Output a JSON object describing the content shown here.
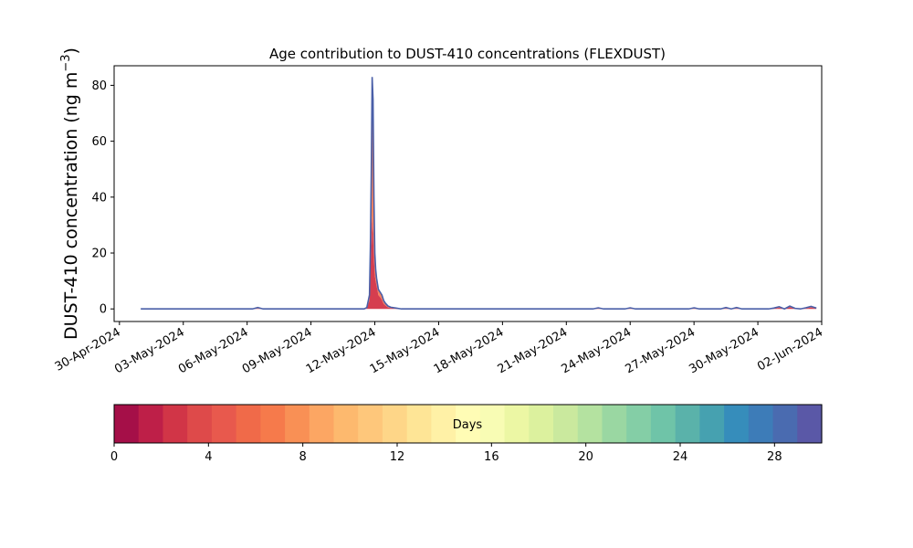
{
  "chart_data": {
    "type": "area",
    "title": "Age contribution to DUST-410 concentrations (FLEXDUST)",
    "xlabel": "",
    "ylabel_main": "DUST-410 concentration (ng m",
    "ylabel_exp": "−3",
    "ylabel_close": ")",
    "xlim": [
      "2024-04-29T18:00",
      "2024-06-02T00:00"
    ],
    "ylim": [
      -4.5,
      87
    ],
    "y_ticks": [
      0,
      20,
      40,
      60,
      80
    ],
    "x_ticks": [
      {
        "date": "2024-04-30",
        "label": "30-Apr-2024"
      },
      {
        "date": "2024-05-03",
        "label": "03-May-2024"
      },
      {
        "date": "2024-05-06",
        "label": "06-May-2024"
      },
      {
        "date": "2024-05-09",
        "label": "09-May-2024"
      },
      {
        "date": "2024-05-12",
        "label": "12-May-2024"
      },
      {
        "date": "2024-05-15",
        "label": "15-May-2024"
      },
      {
        "date": "2024-05-18",
        "label": "18-May-2024"
      },
      {
        "date": "2024-05-21",
        "label": "21-May-2024"
      },
      {
        "date": "2024-05-24",
        "label": "24-May-2024"
      },
      {
        "date": "2024-05-27",
        "label": "27-May-2024"
      },
      {
        "date": "2024-05-30",
        "label": "30-May-2024"
      },
      {
        "date": "2024-06-02",
        "label": "02-Jun-2024"
      }
    ],
    "grid": false,
    "series_note_color": "#4a5fa8",
    "total_series": {
      "x": [
        "2024-05-01T00:00",
        "2024-05-06T06:00",
        "2024-05-06T12:00",
        "2024-05-06T18:00",
        "2024-05-11T12:00",
        "2024-05-11T15:00",
        "2024-05-11T18:00",
        "2024-05-11T19:00",
        "2024-05-11T20:00",
        "2024-05-11T21:00",
        "2024-05-11T22:00",
        "2024-05-11T23:00",
        "2024-05-12T00:00",
        "2024-05-12T01:00",
        "2024-05-12T02:00",
        "2024-05-12T03:00",
        "2024-05-12T04:00",
        "2024-05-12T06:00",
        "2024-05-12T08:00",
        "2024-05-12T10:00",
        "2024-05-12T12:00",
        "2024-05-12T15:00",
        "2024-05-12T18:00",
        "2024-05-13T00:00",
        "2024-05-13T06:00",
        "2024-05-13T12:00",
        "2024-05-22T06:00",
        "2024-05-22T12:00",
        "2024-05-22T18:00",
        "2024-05-23T18:00",
        "2024-05-24T00:00",
        "2024-05-24T06:00",
        "2024-05-26T18:00",
        "2024-05-27T00:00",
        "2024-05-27T06:00",
        "2024-05-28T06:00",
        "2024-05-28T12:00",
        "2024-05-28T18:00",
        "2024-05-29T00:00",
        "2024-05-29T06:00",
        "2024-05-29T12:00",
        "2024-05-30T12:00",
        "2024-05-30T18:00",
        "2024-05-31T00:00",
        "2024-05-31T06:00",
        "2024-05-31T12:00",
        "2024-05-31T18:00",
        "2024-06-01T00:00",
        "2024-06-01T06:00",
        "2024-06-01T12:00",
        "2024-06-01T18:00"
      ],
      "y": [
        0,
        0,
        0.5,
        0,
        0,
        0.5,
        5,
        22,
        48,
        83,
        75,
        40,
        20,
        14,
        11,
        9,
        7,
        6,
        5,
        3,
        2,
        1,
        0.6,
        0.3,
        0,
        0,
        0,
        0.4,
        0,
        0,
        0.4,
        0,
        0,
        0.4,
        0,
        0,
        0.5,
        0,
        0.5,
        0,
        0,
        0,
        0.3,
        0.8,
        0,
        1.0,
        0.2,
        0,
        0.4,
        0.9,
        0.3
      ]
    },
    "young_fraction": [
      0,
      0,
      0.2,
      0,
      0,
      0.4,
      0.6,
      0.6,
      0.5,
      0.4,
      0.35,
      0.45,
      0.6,
      0.7,
      0.75,
      0.75,
      0.7,
      0.7,
      0.65,
      0.6,
      0.6,
      0.5,
      0.5,
      0.4,
      0,
      0,
      0,
      0.3,
      0,
      0,
      0.3,
      0,
      0,
      0.3,
      0,
      0,
      0.3,
      0,
      0.3,
      0,
      0,
      0,
      0.5,
      0.5,
      0,
      0.6,
      0.5,
      0,
      0.4,
      0.6,
      0.5
    ],
    "colorbar": {
      "label": "Days",
      "min": 0,
      "max": 30,
      "ticks": [
        0,
        4,
        8,
        12,
        16,
        20,
        24,
        28
      ],
      "colors": [
        "#a50f48",
        "#be1f48",
        "#d13547",
        "#de4a4a",
        "#e8594d",
        "#f06a49",
        "#f67a4b",
        "#f99055",
        "#fca663",
        "#fdb96e",
        "#fec77b",
        "#fed688",
        "#fee596",
        "#fff1a6",
        "#fffcb5",
        "#f8fcb4",
        "#ecf7a4",
        "#dcf19e",
        "#cae99e",
        "#b4e2a0",
        "#9ad7a2",
        "#84cea6",
        "#6fc4a8",
        "#5ab2aa",
        "#46a1b0",
        "#368dbb",
        "#3d7cb8",
        "#4a6bb0",
        "#5a58a7"
      ]
    }
  }
}
